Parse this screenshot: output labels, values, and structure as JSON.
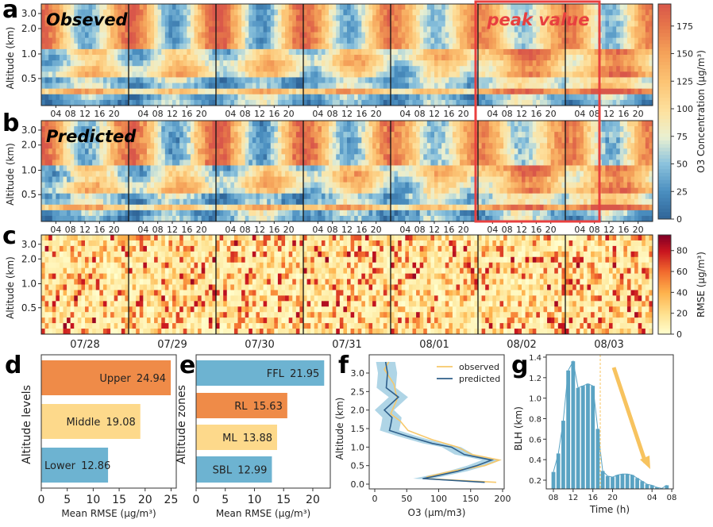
{
  "panel_letters": [
    "a",
    "b",
    "c",
    "d",
    "e",
    "f",
    "g"
  ],
  "annotation": {
    "text": "peak value",
    "color": "#e8403f"
  },
  "chart_data": [
    {
      "type": "heatmap",
      "panel": "a",
      "title": "Obseved",
      "ylabel": "Altitude (km)",
      "yticks": [
        "3.0",
        "2.0",
        "1.0",
        "0.5"
      ],
      "hour_ticks": [
        "04",
        "08",
        "12",
        "16",
        "20"
      ],
      "dates": [
        "07/28",
        "07/29",
        "07/30",
        "07/31",
        "08/01",
        "08/02",
        "08/03"
      ],
      "colorbar": {
        "label": "O3 Concentration (μg/m³)",
        "ticks": [
          "0",
          "25",
          "50",
          "75",
          "100",
          "125",
          "150",
          "175"
        ],
        "range": [
          0,
          195
        ],
        "colormap": "RdYlBu_r"
      }
    },
    {
      "type": "heatmap",
      "panel": "b",
      "title": "Predicted",
      "ylabel": "Altitude (km)",
      "yticks": [
        "3.0",
        "2.0",
        "1.0",
        "0.5"
      ],
      "hour_ticks": [
        "04",
        "08",
        "12",
        "16",
        "20"
      ],
      "colorbar_shared_with": "a"
    },
    {
      "type": "heatmap",
      "panel": "c",
      "ylabel": "Altitude (km)",
      "yticks": [
        "3.0",
        "2.0",
        "1.0",
        "0.5"
      ],
      "dates": [
        "07/28",
        "07/29",
        "07/30",
        "07/31",
        "08/01",
        "08/02",
        "08/03"
      ],
      "colorbar": {
        "label": "RMSE (μg/m³)",
        "ticks": [
          "0",
          "20",
          "40",
          "60",
          "80"
        ],
        "range": [
          0,
          95
        ],
        "colormap": "YlOrRd"
      }
    },
    {
      "type": "bar",
      "orientation": "horizontal",
      "panel": "d",
      "ylabel": "Altitude levels",
      "xlabel": "Mean RMSE (μg/m³)",
      "xticks": [
        "0",
        "5",
        "10",
        "15",
        "20",
        "25"
      ],
      "xlim": [
        0,
        26
      ],
      "categories": [
        "Upper",
        "Middle",
        "Lower"
      ],
      "values": [
        24.94,
        19.08,
        12.86
      ],
      "value_labels": [
        "24.94",
        "19.08",
        "12.86"
      ],
      "colors": [
        "#ef8b48",
        "#fdd98b",
        "#6db3d1"
      ]
    },
    {
      "type": "bar",
      "orientation": "horizontal",
      "panel": "e",
      "ylabel": "Altitude zones",
      "xlabel": "Mean RMSE (μg/m³)",
      "xticks": [
        "0",
        "5",
        "10",
        "15",
        "20"
      ],
      "xlim": [
        0,
        23
      ],
      "categories": [
        "FFL",
        "RL",
        "ML",
        "SBL"
      ],
      "values": [
        21.95,
        15.63,
        13.88,
        12.99
      ],
      "value_labels": [
        "21.95",
        "15.63",
        "13.88",
        "12.99"
      ],
      "colors": [
        "#6db3d1",
        "#ef8b48",
        "#fdd98b",
        "#6db3d1"
      ]
    },
    {
      "type": "line",
      "panel": "f",
      "xlabel": "O3 (μm/m3)",
      "ylabel": "Altitude (km)",
      "xticks": [
        "0",
        "50",
        "100",
        "150",
        "200"
      ],
      "yticks": [
        "0.0",
        "0.5",
        "1.0",
        "1.5",
        "2.0",
        "2.5",
        "3.0"
      ],
      "xlim": [
        -10,
        205
      ],
      "ylim": [
        -0.1,
        3.45
      ],
      "legend": "top-right",
      "series": [
        {
          "name": "observed",
          "color": "#f7c86a",
          "altitude": [
            3.3,
            3.1,
            2.7,
            2.3,
            1.9,
            1.7,
            1.45,
            1.2,
            1.0,
            0.8,
            0.65,
            0.5,
            0.35,
            0.2,
            0.15,
            0.05
          ],
          "values": [
            22,
            15,
            30,
            35,
            25,
            40,
            52,
            90,
            130,
            152,
            195,
            172,
            120,
            82,
            80,
            190
          ]
        },
        {
          "name": "predicted",
          "color": "#2f5f8a",
          "band_color": "#6db3d1",
          "band_halfwidth": 15,
          "altitude": [
            3.3,
            3.0,
            2.6,
            2.35,
            2.0,
            1.8,
            1.6,
            1.45,
            1.3,
            1.1,
            1.0,
            0.8,
            0.65,
            0.5,
            0.35,
            0.2,
            0.15,
            0.05
          ],
          "values": [
            17,
            20,
            18,
            37,
            15,
            27,
            25,
            23,
            50,
            90,
            120,
            140,
            183,
            160,
            130,
            90,
            75,
            172
          ]
        }
      ]
    },
    {
      "type": "bar",
      "panel": "g",
      "xlabel": "Time (h)",
      "ylabel": "BLH (km)",
      "xticks": [
        "08",
        "12",
        "16",
        "20",
        "04",
        "08"
      ],
      "yticks": [
        "0.2",
        "0.4",
        "0.6",
        "0.8",
        "1.0",
        "1.2",
        "1.4"
      ],
      "ylim": [
        0.12,
        1.42
      ],
      "hours": [
        8,
        9,
        10,
        11,
        12,
        13,
        14,
        15,
        16,
        17,
        18,
        19,
        20,
        21,
        22,
        23,
        24,
        25,
        26,
        27,
        28,
        29,
        30,
        31
      ],
      "values": [
        0.28,
        0.46,
        0.78,
        1.27,
        1.36,
        1.1,
        1.12,
        1.14,
        1.12,
        0.7,
        0.29,
        0.24,
        0.23,
        0.25,
        0.26,
        0.26,
        0.25,
        0.22,
        0.19,
        0.16,
        0.15,
        0.13,
        0.12,
        0.15
      ],
      "color": "#5aa3c3",
      "marker_line_hour": 17.5,
      "arrow_color": "#f7c35f"
    }
  ]
}
